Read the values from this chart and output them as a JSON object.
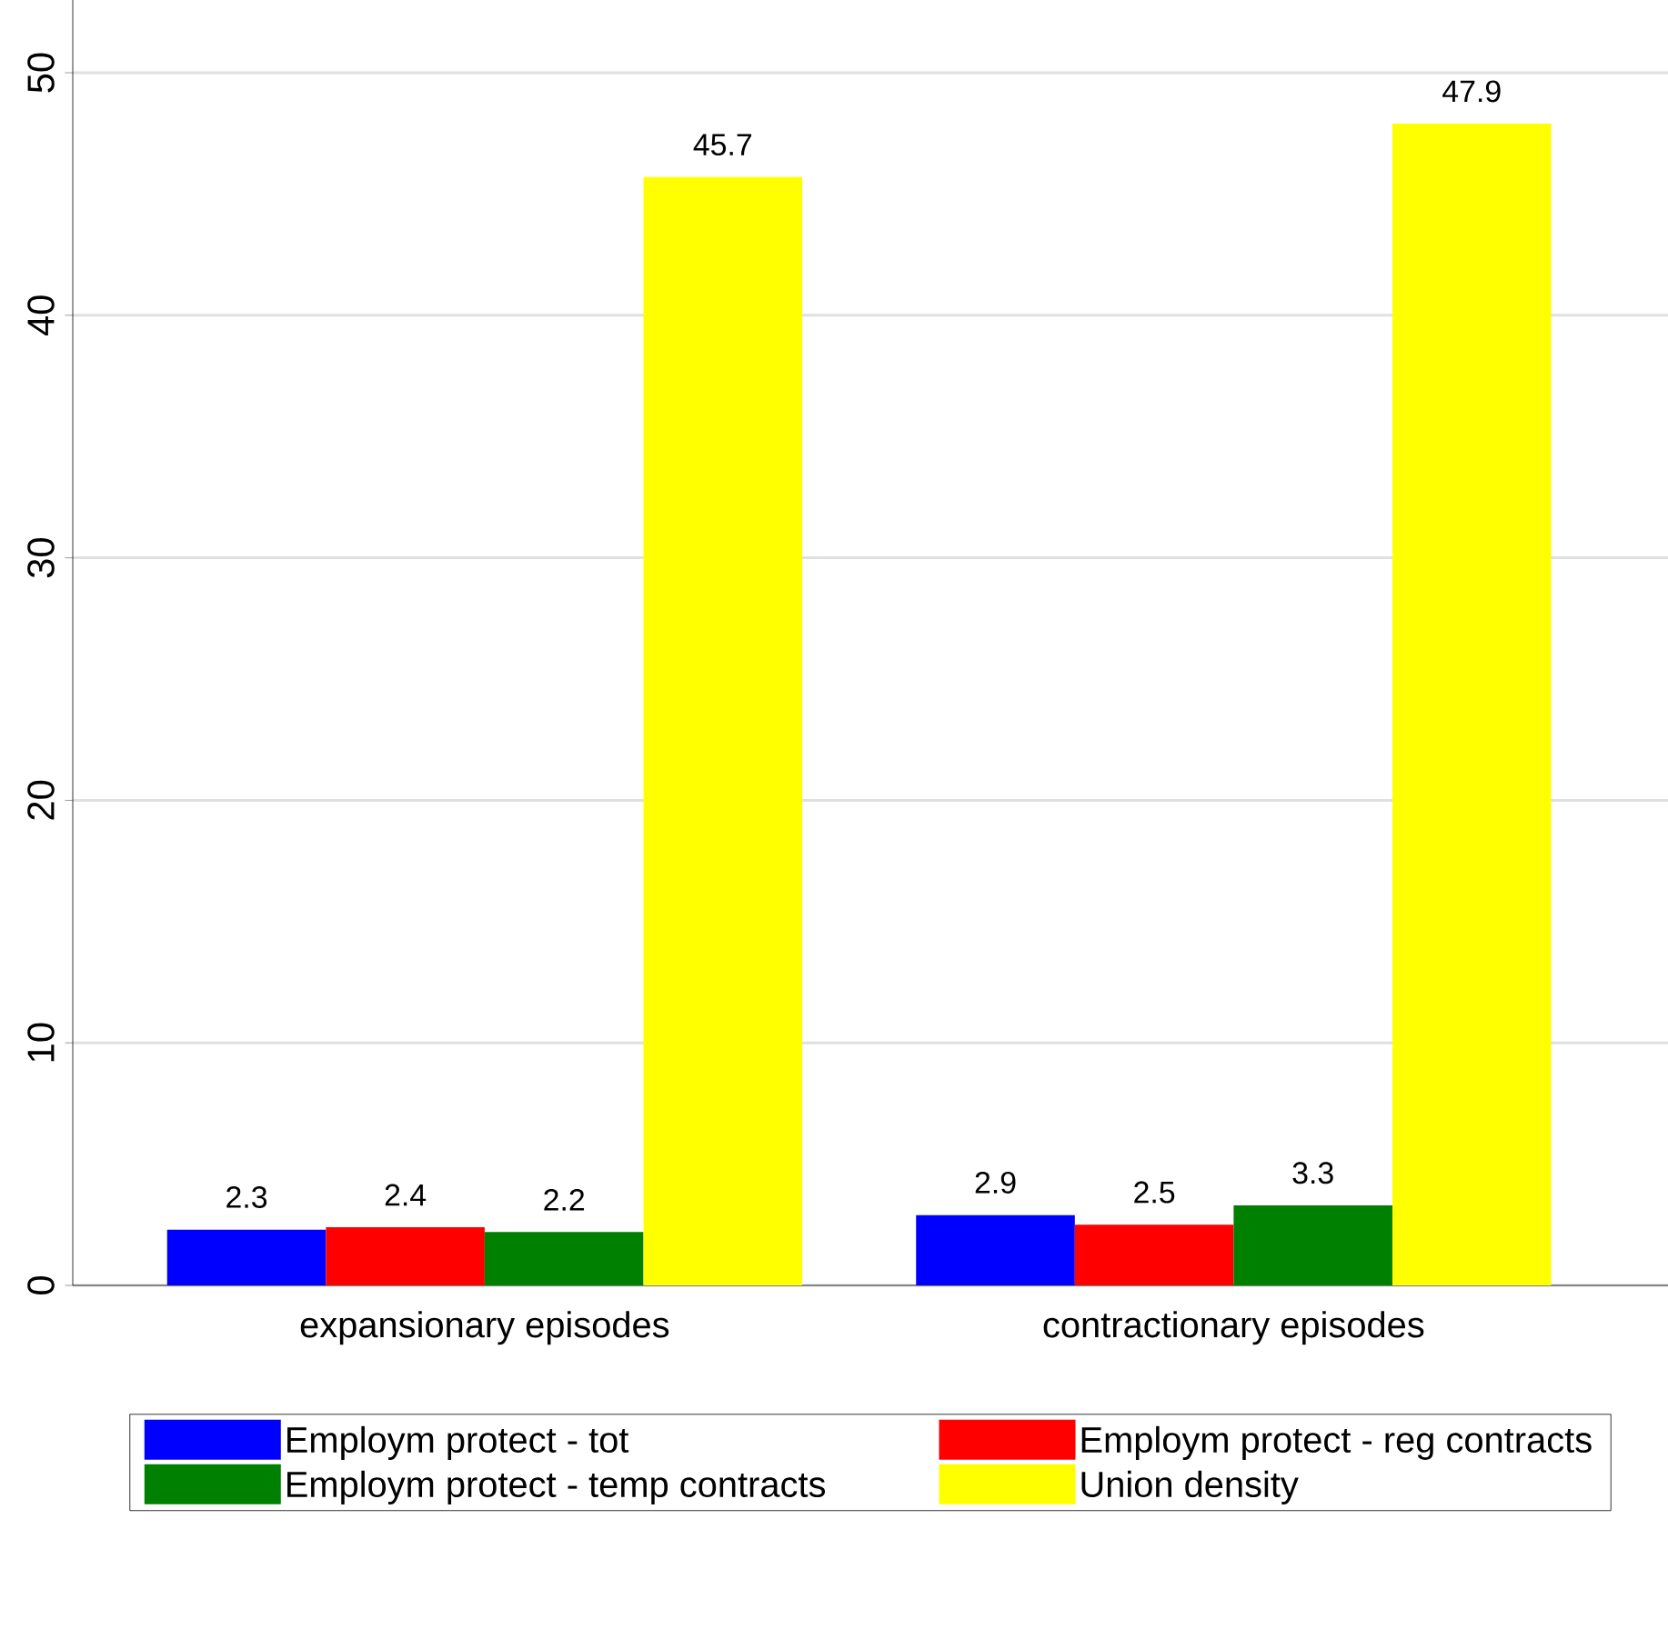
{
  "chart_data": {
    "type": "bar",
    "categories": [
      "expansionary episodes",
      "contractionary episodes"
    ],
    "series": [
      {
        "name": "Employm protect - tot",
        "color": "#0000ff",
        "values": [
          2.3,
          2.9
        ]
      },
      {
        "name": "Employm protect - reg contracts",
        "color": "#ff0000",
        "values": [
          2.4,
          2.5
        ]
      },
      {
        "name": "Employm protect - temp contracts",
        "color": "#008000",
        "values": [
          2.2,
          3.3
        ]
      },
      {
        "name": "Union density",
        "color": "#ffff00",
        "values": [
          45.7,
          47.9
        ]
      }
    ],
    "ylim": [
      0,
      53
    ],
    "yticks": [
      0,
      10,
      20,
      30,
      40,
      50
    ],
    "grid": "y",
    "legend": "bottom",
    "data_labels": true
  }
}
